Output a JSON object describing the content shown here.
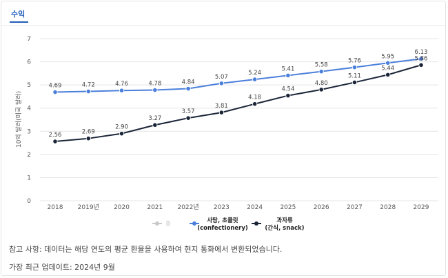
{
  "tab": {
    "label": "수익"
  },
  "chart_data": {
    "type": "line",
    "ylabel": "10억 달러(미국 달러)",
    "ylim": [
      0,
      7
    ],
    "yticks": [
      "0",
      "1",
      "2",
      "3",
      "4",
      "5",
      "6",
      "7"
    ],
    "categories": [
      "2018",
      "2019년",
      "2020",
      "2021",
      "2022년",
      "2023",
      "2024",
      "2025",
      "2026",
      "2027",
      "2028",
      "2029"
    ],
    "series": [
      {
        "name": "사탕, 초콜릿 (confectionery)",
        "name_lines": [
          "사탕, 초콜릿",
          "(confectionery)"
        ],
        "color": "#4a7fdc",
        "values": [
          4.69,
          4.72,
          4.76,
          4.78,
          4.84,
          5.07,
          5.24,
          5.41,
          5.58,
          5.76,
          5.95,
          6.13
        ]
      },
      {
        "name": "과자류 (간식, snack)",
        "name_lines": [
          "과자류",
          "(간식, snack)"
        ],
        "color": "#1b2538",
        "values": [
          2.56,
          2.69,
          2.9,
          3.27,
          3.57,
          3.81,
          4.18,
          4.54,
          4.8,
          5.11,
          5.44,
          5.86
        ]
      }
    ],
    "hidden_series": {
      "name": "총",
      "color": "#c8c8c8"
    },
    "grid": true,
    "legend_position": "bottom-center"
  },
  "footer": {
    "note": "참고 사항: 데이터는 해당 연도의 평균 환율을 사용하여 현지 통화에서 변환되었습니다.",
    "updated": "가장 최근 업데이트: 2024년 9월"
  }
}
